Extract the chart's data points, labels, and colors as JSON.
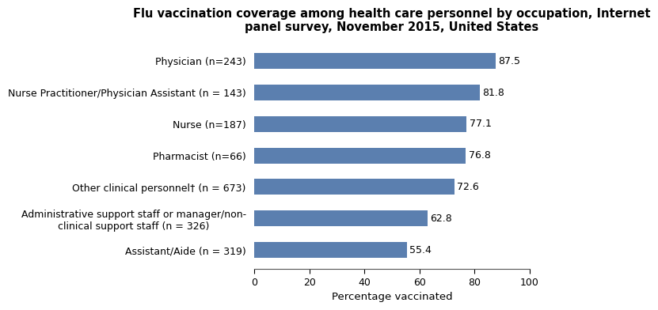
{
  "title": "Flu vaccination coverage among health care personnel by occupation, Internet\npanel survey, November 2015, United States",
  "categories": [
    "Assistant/Aide (n = 319)",
    "Administrative support staff or manager/non-\nclinical support staff (n = 326)",
    "Other clinical personnel† (n = 673)",
    "Pharmacist (n=66)",
    "Nurse (n=187)",
    "Nurse Practitioner/Physician Assistant (n = 143)",
    "Physician (n=243)"
  ],
  "values": [
    55.4,
    62.8,
    72.6,
    76.8,
    77.1,
    81.8,
    87.5
  ],
  "bar_color": "#5b7faf",
  "xlabel": "Percentage vaccinated",
  "xlim": [
    0,
    100
  ],
  "xticks": [
    0,
    20,
    40,
    60,
    80,
    100
  ],
  "title_fontsize": 10.5,
  "label_fontsize": 9.5,
  "tick_fontsize": 9,
  "value_fontsize": 9,
  "background_color": "#ffffff"
}
